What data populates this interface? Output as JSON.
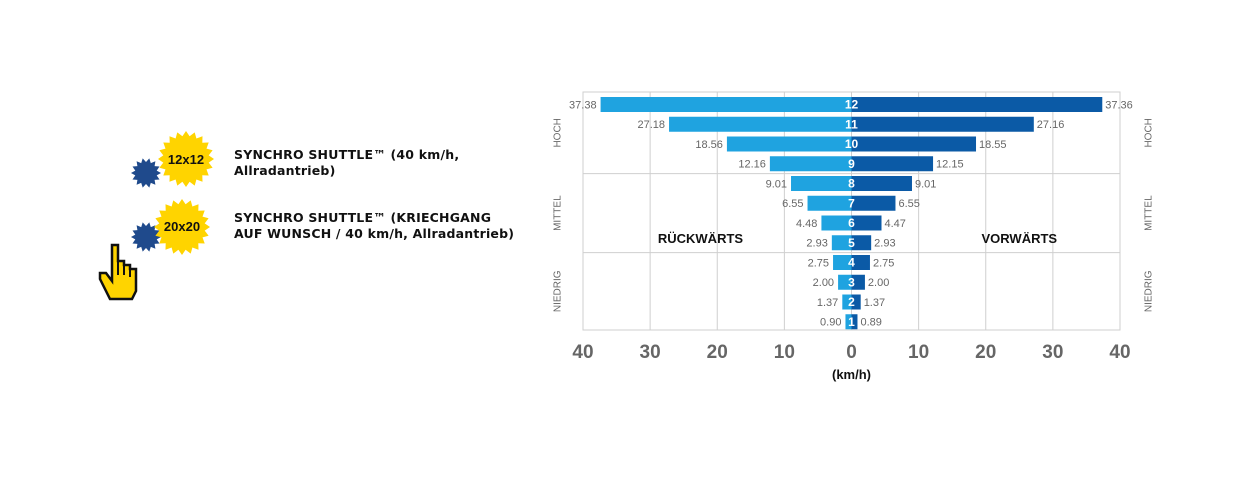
{
  "options": [
    {
      "badge": "12x12",
      "label": "SYNCHRO SHUTTLE™ (40 km/h,\nAllradantrieb)"
    },
    {
      "badge": "20x20",
      "label": "SYNCHRO SHUTTLE™ (KRIECHGANG\nAUF WUNSCH / 40 km/h, Allradantrieb)"
    }
  ],
  "colors": {
    "gear_yellow": "#ffd400",
    "gear_navy": "#1f4a8c",
    "bar_left": "#1fa3e0",
    "bar_right": "#0b5aa6",
    "grid": "#cfcfcf",
    "label_grey": "#666666",
    "hand_yellow": "#ffd400"
  },
  "icons": {
    "options": "gear-icon",
    "pointer": "hand-pointer-icon"
  },
  "chart_data": {
    "type": "bar",
    "orientation": "horizontal-diverging",
    "gears": [
      "12",
      "11",
      "10",
      "9",
      "8",
      "7",
      "6",
      "5",
      "4",
      "3",
      "2",
      "1"
    ],
    "series": [
      {
        "name": "RÜCKWÄRTS",
        "values": [
          37.38,
          27.18,
          18.56,
          12.16,
          9.01,
          6.55,
          4.48,
          2.93,
          2.75,
          2.0,
          1.37,
          0.9
        ]
      },
      {
        "name": "VORWÄRTS",
        "values": [
          37.36,
          27.16,
          18.55,
          12.15,
          9.01,
          6.55,
          4.47,
          2.93,
          2.75,
          2.0,
          1.37,
          0.89
        ]
      }
    ],
    "value_labels_left": [
      "37.38",
      "27.18",
      "18.56",
      "12.16",
      "9.01",
      "6.55",
      "4.48",
      "2.93",
      "2.75",
      "2.00",
      "1.37",
      "0.90"
    ],
    "value_labels_right": [
      "37.36",
      "27.16",
      "18.55",
      "12.15",
      "9.01",
      "6.55",
      "4.47",
      "2.93",
      "2.75",
      "2.00",
      "1.37",
      "0.89"
    ],
    "ranges": [
      {
        "label": "HOCH",
        "gears": 4
      },
      {
        "label": "MITTEL",
        "gears": 4
      },
      {
        "label": "NIEDRIG",
        "gears": 4
      }
    ],
    "xlim": [
      -40,
      40
    ],
    "x_ticks": [
      -40,
      -30,
      -20,
      -10,
      0,
      10,
      20,
      30,
      40
    ],
    "x_tick_labels": [
      "40",
      "30",
      "20",
      "10",
      "0",
      "10",
      "20",
      "30",
      "40"
    ],
    "xlabel": "(km/h)",
    "grid": true
  }
}
